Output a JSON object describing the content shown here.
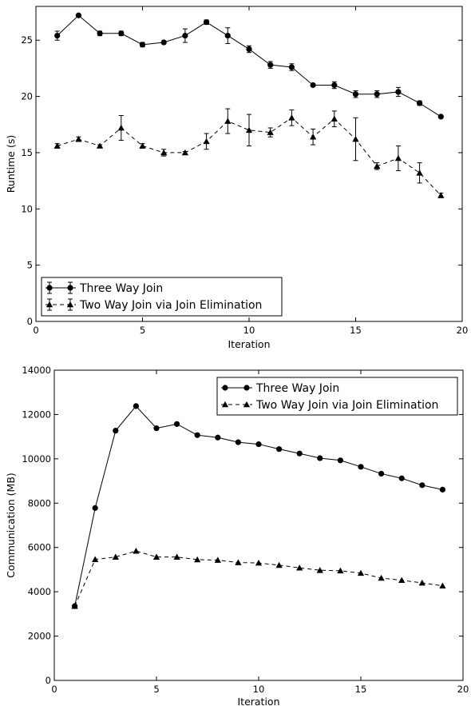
{
  "chart_data": [
    {
      "type": "line",
      "xlabel": "Iteration",
      "ylabel": "Runtime (s)",
      "xlim": [
        0,
        20
      ],
      "ylim": [
        0,
        28
      ],
      "xticks": [
        "0",
        "5",
        "10",
        "15",
        "20"
      ],
      "yticks": [
        "0",
        "5",
        "10",
        "15",
        "20",
        "25"
      ],
      "legend_position": "lower-left",
      "x": [
        1,
        2,
        3,
        4,
        5,
        6,
        7,
        8,
        9,
        10,
        11,
        12,
        13,
        14,
        15,
        16,
        17,
        18,
        19
      ],
      "series": [
        {
          "name": "Three Way Join",
          "marker": "circle",
          "linestyle": "solid",
          "values": [
            25.4,
            27.2,
            25.6,
            25.6,
            24.6,
            24.8,
            25.4,
            26.6,
            25.4,
            24.2,
            22.8,
            22.6,
            21.0,
            21.0,
            20.2,
            20.2,
            20.4,
            19.4,
            18.2
          ],
          "errors": [
            0.4,
            0.1,
            0.2,
            0.2,
            0.2,
            0.1,
            0.6,
            0.2,
            0.7,
            0.3,
            0.3,
            0.3,
            0.1,
            0.3,
            0.3,
            0.3,
            0.4,
            0.2,
            0.1
          ]
        },
        {
          "name": "Two Way Join via Join Elimination",
          "marker": "triangle",
          "linestyle": "dashed",
          "values": [
            15.6,
            16.2,
            15.6,
            17.2,
            15.6,
            15.0,
            15.0,
            16.0,
            17.8,
            17.0,
            16.8,
            18.1,
            16.4,
            18.0,
            16.2,
            13.8,
            14.5,
            13.2,
            11.2
          ],
          "errors": [
            0.2,
            0.2,
            0.1,
            1.1,
            0.2,
            0.3,
            0.1,
            0.7,
            1.1,
            1.4,
            0.4,
            0.7,
            0.7,
            0.7,
            1.9,
            0.3,
            1.1,
            0.9,
            0.2
          ]
        }
      ]
    },
    {
      "type": "line",
      "xlabel": "Iteration",
      "ylabel": "Communication (MB)",
      "xlim": [
        0,
        20
      ],
      "ylim": [
        0,
        14000
      ],
      "xticks": [
        "0",
        "5",
        "10",
        "15",
        "20"
      ],
      "yticks": [
        "0",
        "2000",
        "4000",
        "6000",
        "8000",
        "10000",
        "12000",
        "14000"
      ],
      "legend_position": "top-right",
      "x": [
        1,
        2,
        3,
        4,
        5,
        6,
        7,
        8,
        9,
        10,
        11,
        12,
        13,
        14,
        15,
        16,
        17,
        18,
        19
      ],
      "series": [
        {
          "name": "Three Way Join",
          "marker": "circle",
          "linestyle": "solid",
          "values": [
            3350,
            7780,
            11270,
            12380,
            11380,
            11570,
            11070,
            10960,
            10750,
            10660,
            10440,
            10240,
            10030,
            9930,
            9640,
            9330,
            9120,
            8810,
            8610
          ]
        },
        {
          "name": "Two Way Join via Join Elimination",
          "marker": "triangle",
          "linestyle": "dashed",
          "values": [
            3350,
            5460,
            5570,
            5840,
            5570,
            5570,
            5450,
            5430,
            5320,
            5300,
            5200,
            5080,
            4970,
            4950,
            4840,
            4620,
            4520,
            4400,
            4270
          ]
        }
      ]
    }
  ]
}
